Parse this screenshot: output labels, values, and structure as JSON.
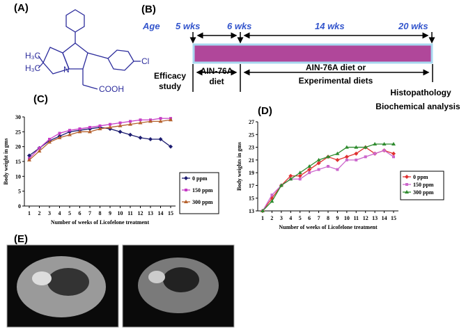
{
  "panel_labels": [
    "(A)",
    "(B)",
    "(C)",
    "(D)",
    "(E)"
  ],
  "structure": {
    "labels": [
      "H₃C",
      "H₃C",
      "N",
      "Cl",
      "COOH"
    ]
  },
  "timeline": {
    "age_label": "Age",
    "ages": [
      "5 wks",
      "6 wks",
      "14 wks",
      "20 wks"
    ],
    "efficacy": [
      "Efficacy",
      "study"
    ],
    "control_diet": [
      "AIN-76A",
      "diet"
    ],
    "experimental_diet": [
      "AIN-76A diet or",
      "Experimental diets"
    ],
    "endpoints": [
      "Histopathology",
      "Biochemical analysis"
    ]
  },
  "chart_data": [
    {
      "type": "line",
      "y_label": "Body weight in gms",
      "x_label": "Number of weeks of Licofelone treatment",
      "categories": [
        "1",
        "2",
        "3",
        "4",
        "5",
        "6",
        "7",
        "8",
        "9",
        "10",
        "11",
        "12",
        "13",
        "14",
        "15"
      ],
      "ylim": [
        0,
        30
      ],
      "yticks": [
        0,
        5,
        10,
        15,
        20,
        25,
        30
      ],
      "series": [
        {
          "name": "0 ppm",
          "color": "#1c1c70",
          "marker": "diamond",
          "values": [
            17,
            19.5,
            22,
            23.5,
            25,
            25.5,
            26,
            26.5,
            26,
            25,
            24,
            23,
            22.5,
            22.5,
            20
          ]
        },
        {
          "name": "150 ppm",
          "color": "#c63cc6",
          "marker": "square",
          "values": [
            16,
            19.5,
            22.5,
            24.5,
            25.5,
            26,
            26.5,
            27,
            27.5,
            28,
            28.5,
            29,
            29,
            29.5,
            29.5
          ]
        },
        {
          "name": "300 ppm",
          "color": "#b5602c",
          "marker": "triangle",
          "values": [
            15.5,
            18.5,
            21.5,
            23,
            24,
            25,
            25,
            26,
            26.5,
            27,
            27.5,
            28,
            28.5,
            28.5,
            29
          ]
        }
      ]
    },
    {
      "type": "line",
      "y_label": "Body weights in gms",
      "x_label": "Number of weeks of Licofelone treatment",
      "categories": [
        "1",
        "2",
        "3",
        "4",
        "5",
        "6",
        "7",
        "8",
        "9",
        "10",
        "11",
        "12",
        "13",
        "14",
        "15"
      ],
      "ylim": [
        13,
        27
      ],
      "yticks": [
        13,
        15,
        17,
        19,
        21,
        23,
        25,
        27
      ],
      "series": [
        {
          "name": "0 ppm",
          "color": "#e03030",
          "marker": "diamond",
          "values": [
            13,
            15,
            17,
            18.5,
            18.5,
            19.5,
            20.5,
            21.5,
            21,
            21.5,
            22,
            23,
            22,
            22.5,
            22
          ]
        },
        {
          "name": "150 ppm",
          "color": "#cc66cc",
          "marker": "square",
          "values": [
            13,
            15.5,
            17,
            18,
            18,
            19,
            19.5,
            20,
            19.5,
            21,
            21,
            21.5,
            22,
            22.5,
            21.5
          ]
        },
        {
          "name": "300 ppm",
          "color": "#2e8b2e",
          "marker": "triangle",
          "values": [
            13,
            14.5,
            17,
            18,
            19,
            20,
            21,
            21.5,
            22,
            23,
            23,
            23,
            23.5,
            23.5,
            23.5
          ]
        }
      ]
    }
  ]
}
